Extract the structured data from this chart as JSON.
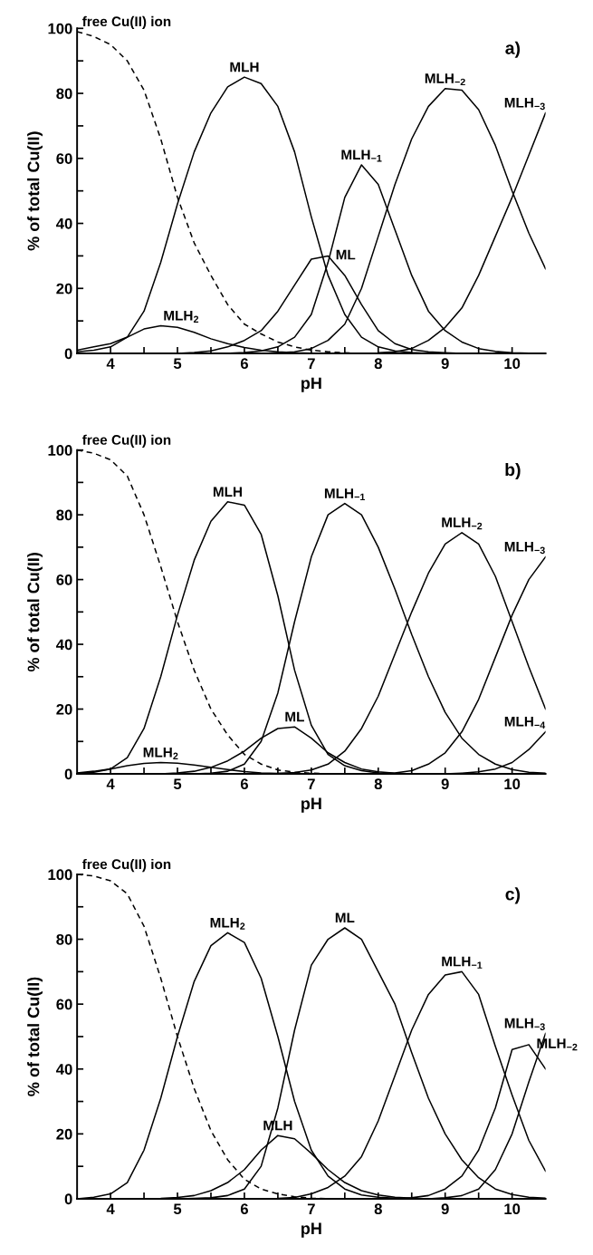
{
  "chart_data": [
    {
      "type": "line",
      "xlabel": "pH",
      "ylabel": "% of total Cu(II)",
      "annotations": [
        "a)"
      ],
      "xlim": [
        3.5,
        10.5
      ],
      "ylim": [
        0,
        100
      ],
      "xticks": [
        4,
        {
          "value": 4.5,
          "label": null
        },
        5,
        {
          "value": 5.5,
          "label": null
        },
        6,
        {
          "value": 6.5,
          "label": null
        },
        7,
        {
          "value": 7.5,
          "label": null
        },
        8,
        {
          "value": 8.5,
          "label": null
        },
        9,
        {
          "value": 9.5,
          "label": null
        },
        10
      ],
      "yticks": [
        0,
        {
          "value": 10,
          "label": null
        },
        20,
        {
          "value": 30,
          "label": null
        },
        40,
        {
          "value": 50,
          "label": null
        },
        60,
        {
          "value": 70,
          "label": null
        },
        80,
        {
          "value": 90,
          "label": null
        },
        100
      ],
      "x": [
        3.5,
        3.75,
        4,
        4.25,
        4.5,
        4.75,
        5,
        5.25,
        5.5,
        5.75,
        6,
        6.25,
        6.5,
        6.75,
        7,
        7.25,
        7.5,
        7.75,
        8,
        8.25,
        8.5,
        8.75,
        9,
        9.25,
        9.5,
        9.75,
        10,
        10.25,
        10.5
      ],
      "series": [
        {
          "name": "free Cu(II) ion",
          "color": "#000000",
          "line_style": "dashed",
          "values": [
            99,
            97.5,
            95,
            90,
            81,
            66,
            48,
            34,
            24,
            15,
            9,
            6,
            3.5,
            2,
            1,
            0.5,
            0.2,
            0,
            null,
            null,
            null,
            null,
            null,
            null,
            null,
            null,
            null,
            null,
            null
          ]
        },
        {
          "name": "MLH$_{2}$",
          "color": "#000000",
          "line_style": "solid",
          "values": [
            1,
            2,
            3,
            5,
            7.5,
            8.5,
            8,
            6.5,
            4.5,
            3,
            1.8,
            1,
            0.5,
            0.2,
            0.1,
            0,
            null,
            null,
            null,
            null,
            null,
            null,
            null,
            null,
            null,
            null,
            null,
            null,
            null
          ]
        },
        {
          "name": "MLH",
          "color": "#000000",
          "line_style": "solid",
          "values": [
            0.5,
            1,
            2,
            5,
            13,
            28,
            46,
            62,
            74,
            82,
            85,
            83,
            76,
            62,
            42,
            24,
            12,
            5,
            2,
            0.8,
            0.3,
            0,
            null,
            null,
            null,
            null,
            null,
            null,
            null
          ]
        },
        {
          "name": "ML",
          "color": "#000000",
          "line_style": "solid",
          "values": [
            null,
            null,
            null,
            null,
            null,
            null,
            0,
            0.3,
            0.8,
            2,
            4,
            7,
            13,
            21,
            29,
            30,
            24,
            15,
            7,
            3,
            1.2,
            0.5,
            0.2,
            0,
            null,
            null,
            null,
            null,
            null
          ]
        },
        {
          "name": "MLH$_{−1}$",
          "color": "#000000",
          "line_style": "solid",
          "values": [
            null,
            null,
            null,
            null,
            null,
            null,
            null,
            null,
            null,
            0,
            0.3,
            0.8,
            2,
            5,
            12,
            28,
            48,
            58,
            52,
            38,
            24,
            13,
            7,
            3.5,
            1.5,
            0.6,
            0.2,
            0.1,
            0
          ]
        },
        {
          "name": "MLH$_{−2}$",
          "color": "#000000",
          "line_style": "solid",
          "values": [
            null,
            null,
            null,
            null,
            null,
            null,
            null,
            null,
            null,
            null,
            null,
            0,
            0.2,
            0.5,
            1.5,
            4,
            9,
            20,
            36,
            52,
            66,
            76,
            81.5,
            81,
            75,
            64,
            50,
            37,
            26
          ]
        },
        {
          "name": "MLH$_{−3}$",
          "color": "#000000",
          "line_style": "solid",
          "values": [
            null,
            null,
            null,
            null,
            null,
            null,
            null,
            null,
            null,
            null,
            null,
            null,
            null,
            null,
            null,
            null,
            null,
            null,
            0.2,
            0.5,
            1.5,
            4,
            8,
            14,
            24,
            36,
            48,
            61,
            74
          ]
        }
      ]
    },
    {
      "type": "line",
      "xlabel": "pH",
      "ylabel": "% of total Cu(II)",
      "annotations": [
        "b)"
      ],
      "xlim": [
        3.5,
        10.5
      ],
      "ylim": [
        0,
        100
      ],
      "xticks": [
        4,
        {
          "value": 4.5,
          "label": null
        },
        5,
        {
          "value": 5.5,
          "label": null
        },
        6,
        {
          "value": 6.5,
          "label": null
        },
        7,
        {
          "value": 7.5,
          "label": null
        },
        8,
        {
          "value": 8.5,
          "label": null
        },
        9,
        {
          "value": 9.5,
          "label": null
        },
        10
      ],
      "yticks": [
        0,
        {
          "value": 10,
          "label": null
        },
        20,
        {
          "value": 30,
          "label": null
        },
        40,
        {
          "value": 50,
          "label": null
        },
        60,
        {
          "value": 70,
          "label": null
        },
        80,
        {
          "value": 90,
          "label": null
        },
        100
      ],
      "x": [
        3.5,
        3.75,
        4,
        4.25,
        4.5,
        4.75,
        5,
        5.25,
        5.5,
        5.75,
        6,
        6.25,
        6.5,
        6.75,
        7,
        7.25,
        7.5,
        7.75,
        8,
        8.25,
        8.5,
        8.75,
        9,
        9.25,
        9.5,
        9.75,
        10,
        10.25,
        10.5
      ],
      "series": [
        {
          "name": "free Cu(II) ion",
          "color": "#000000",
          "line_style": "dashed",
          "values": [
            100,
            99,
            97,
            92,
            80,
            64,
            47,
            32,
            20,
            12,
            6,
            3,
            1.2,
            0.5,
            0.2,
            0,
            null,
            null,
            null,
            null,
            null,
            null,
            null,
            null,
            null,
            null,
            null,
            null,
            null
          ]
        },
        {
          "name": "MLH$_{2}$",
          "color": "#000000",
          "line_style": "solid",
          "values": [
            0.3,
            0.8,
            1.5,
            2.5,
            3.2,
            3.5,
            3.3,
            2.7,
            2,
            1.3,
            0.7,
            0.3,
            0.1,
            0,
            null,
            null,
            null,
            null,
            null,
            null,
            null,
            null,
            null,
            null,
            null,
            null,
            null,
            null,
            null
          ]
        },
        {
          "name": "MLH",
          "color": "#000000",
          "line_style": "solid",
          "values": [
            0.2,
            0.5,
            1.5,
            5,
            14,
            30,
            49,
            66,
            78,
            84,
            83,
            74,
            55,
            32,
            15,
            6,
            2.5,
            1,
            0.3,
            0,
            null,
            null,
            null,
            null,
            null,
            null,
            null,
            null,
            null
          ]
        },
        {
          "name": "ML",
          "color": "#000000",
          "line_style": "solid",
          "values": [
            null,
            null,
            null,
            null,
            null,
            0,
            0.3,
            0.8,
            2,
            4,
            7,
            11,
            14,
            14.5,
            11,
            6.5,
            3.5,
            1.5,
            0.6,
            0.2,
            0,
            null,
            null,
            null,
            null,
            null,
            null,
            null,
            null
          ]
        },
        {
          "name": "MLH$_{−1}$",
          "color": "#000000",
          "line_style": "solid",
          "values": [
            null,
            null,
            null,
            null,
            null,
            null,
            null,
            0,
            0.2,
            0.8,
            3,
            10,
            25,
            47,
            67,
            80,
            83.5,
            80,
            70,
            57,
            43,
            30,
            19,
            11,
            6,
            3,
            1.3,
            0.5,
            0.2
          ]
        },
        {
          "name": "MLH$_{−2}$",
          "color": "#000000",
          "line_style": "solid",
          "values": [
            null,
            null,
            null,
            null,
            null,
            null,
            null,
            null,
            null,
            null,
            null,
            0,
            0.1,
            0.4,
            1.2,
            3,
            7,
            14,
            24,
            37,
            50,
            62,
            71,
            74.5,
            71,
            61,
            47,
            33,
            20
          ]
        },
        {
          "name": "MLH$_{−3}$",
          "color": "#000000",
          "line_style": "solid",
          "values": [
            null,
            null,
            null,
            null,
            null,
            null,
            null,
            null,
            null,
            null,
            null,
            null,
            null,
            null,
            null,
            null,
            null,
            null,
            0,
            0.3,
            1,
            3,
            6.5,
            13,
            23,
            36,
            49,
            60,
            67
          ]
        },
        {
          "name": "MLH$_{−4}$",
          "color": "#000000",
          "line_style": "solid",
          "values": [
            null,
            null,
            null,
            null,
            null,
            null,
            null,
            null,
            null,
            null,
            null,
            null,
            null,
            null,
            null,
            null,
            null,
            null,
            null,
            null,
            null,
            null,
            0,
            0.2,
            0.6,
            1.5,
            3.5,
            7.5,
            13
          ]
        }
      ]
    },
    {
      "type": "line",
      "xlabel": "pH",
      "ylabel": "% of total Cu(II)",
      "annotations": [
        "c)"
      ],
      "xlim": [
        3.5,
        10.5
      ],
      "ylim": [
        0,
        100
      ],
      "xticks": [
        4,
        {
          "value": 4.5,
          "label": null
        },
        5,
        {
          "value": 5.5,
          "label": null
        },
        6,
        {
          "value": 6.5,
          "label": null
        },
        7,
        {
          "value": 7.5,
          "label": null
        },
        8,
        {
          "value": 8.5,
          "label": null
        },
        9,
        {
          "value": 9.5,
          "label": null
        },
        10
      ],
      "yticks": [
        0,
        {
          "value": 10,
          "label": null
        },
        20,
        {
          "value": 30,
          "label": null
        },
        40,
        {
          "value": 50,
          "label": null
        },
        60,
        {
          "value": 70,
          "label": null
        },
        80,
        {
          "value": 90,
          "label": null
        },
        100
      ],
      "x": [
        3.5,
        3.75,
        4,
        4.25,
        4.5,
        4.75,
        5,
        5.25,
        5.5,
        5.75,
        6,
        6.25,
        6.5,
        6.75,
        7,
        7.25,
        7.5,
        7.75,
        8,
        8.25,
        8.5,
        8.75,
        9,
        9.25,
        9.5,
        9.75,
        10,
        10.25,
        10.5
      ],
      "series": [
        {
          "name": "free Cu(II) ion",
          "color": "#000000",
          "line_style": "dashed",
          "values": [
            100,
            99.5,
            98,
            94,
            84,
            68,
            50,
            34,
            21,
            12,
            6,
            3,
            1.5,
            0.6,
            0.2,
            0,
            null,
            null,
            null,
            null,
            null,
            null,
            null,
            null,
            null,
            null,
            null,
            null,
            null
          ]
        },
        {
          "name": "MLH$_{2}$",
          "color": "#000000",
          "line_style": "solid",
          "values": [
            0,
            0.5,
            1.5,
            5,
            15,
            31,
            50,
            67,
            78,
            82,
            79,
            68,
            50,
            30,
            15,
            7,
            3,
            1.2,
            0.5,
            0.2,
            0,
            null,
            null,
            null,
            null,
            null,
            null,
            null,
            null
          ]
        },
        {
          "name": "MLH",
          "color": "#000000",
          "line_style": "solid",
          "values": [
            null,
            null,
            null,
            null,
            0,
            0.1,
            0.4,
            1,
            2.5,
            5,
            9,
            15,
            19.5,
            18.5,
            14,
            9,
            5,
            2.5,
            1.2,
            0.5,
            0.2,
            null,
            null,
            null,
            null,
            null,
            null,
            null,
            null
          ]
        },
        {
          "name": "ML",
          "color": "#000000",
          "line_style": "solid",
          "values": [
            null,
            null,
            null,
            null,
            null,
            null,
            0,
            0.1,
            0.3,
            1,
            3,
            10,
            28,
            52,
            72,
            80,
            83.5,
            80,
            70,
            60,
            45,
            31,
            20,
            12,
            6.5,
            3,
            1.3,
            0.5,
            0.2
          ]
        },
        {
          "name": "MLH$_{−1}$",
          "color": "#000000",
          "line_style": "solid",
          "values": [
            null,
            null,
            null,
            null,
            null,
            null,
            null,
            null,
            null,
            null,
            null,
            0,
            0.1,
            0.4,
            1.5,
            3.5,
            7,
            13,
            24,
            38,
            52,
            63,
            69,
            70,
            63,
            47,
            32,
            18,
            8.5
          ]
        },
        {
          "name": "MLH$_{−2}$",
          "color": "#000000",
          "line_style": "solid",
          "values": [
            null,
            null,
            null,
            null,
            null,
            null,
            null,
            null,
            null,
            null,
            null,
            null,
            null,
            null,
            null,
            null,
            null,
            null,
            null,
            0,
            0.3,
            1,
            3,
            7,
            15,
            28,
            46,
            47.5,
            40
          ]
        },
        {
          "name": "MLH$_{−3}$",
          "color": "#000000",
          "line_style": "solid",
          "values": [
            null,
            null,
            null,
            null,
            null,
            null,
            null,
            null,
            null,
            null,
            null,
            null,
            null,
            null,
            null,
            null,
            null,
            null,
            null,
            null,
            null,
            0,
            0.3,
            1,
            3,
            9,
            20,
            36,
            51
          ]
        }
      ]
    }
  ]
}
